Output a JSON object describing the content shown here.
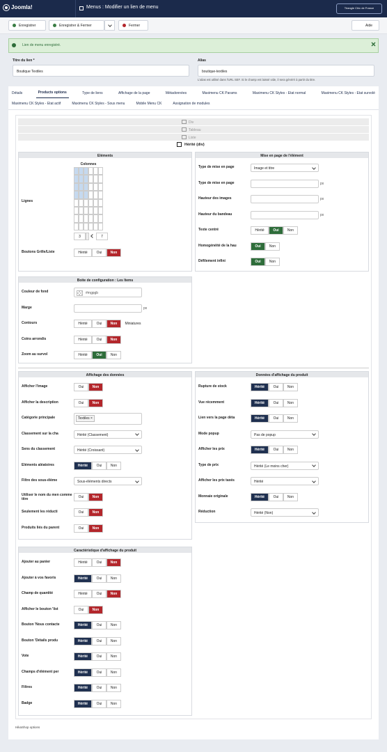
{
  "header": {
    "logo": "Joomla!",
    "title": "Menus : Modifier un lien de menu",
    "user": "Triangle Chic de France"
  },
  "toolbar": {
    "buttons": [
      "Enregistrer",
      "Enregistrer & Fermer",
      "Fermer"
    ],
    "help": "Aide"
  },
  "message": "Lien de menu enregistré.",
  "fields": [
    {
      "label": "Titre du lien *",
      "value": "Boutique Textiles"
    },
    {
      "label": "Alias",
      "value": "boutique-textiles",
      "help": "L'alias est utilisé dans l'URL SEF. Si le champ est laissé vide, il sera généré à partir du titre."
    }
  ],
  "tabs": {
    "rows": [
      [
        "Détails",
        "Products options",
        "Type de liens",
        "Affichage de la page",
        "Métadonnées",
        "Maximenu CK Params",
        "Maximenu CK Styles - Etat normal",
        "Maximenu CK Styles - Etat survolé"
      ],
      [
        "Maximenu CK Styles - Etat actif",
        "Maximenu CK Styles - Sous menu",
        "Mobile Menu CK",
        "Assignation de modules"
      ]
    ],
    "active": [
      0,
      1
    ]
  },
  "layouts": {
    "options": [
      "Div",
      "Tableau",
      "Liste"
    ],
    "current": "Hérité (div)"
  },
  "panels": [
    {
      "title": "Eléments",
      "rows": [
        {
          "label": "Lignes",
          "control": {
            "type": "grid",
            "columns_label": "Colonnes",
            "total_columns": 6,
            "total_rows": 8,
            "columns": 3,
            "rows": 4,
            "spin": [
              3,
              7
            ]
          }
        },
        {
          "label": "Boutons Grille/Liste",
          "control": {
            "type": "toggle",
            "options": [
              "Hérité",
              "Oui",
              "Non"
            ],
            "active": 2,
            "style": "red"
          }
        }
      ]
    },
    {
      "title": "Mise en page de l'élément",
      "rows": [
        {
          "label": "Type de mise en page",
          "control": {
            "type": "select",
            "value": "Image et titre"
          }
        },
        {
          "label": "Type de mise en page",
          "control": {
            "type": "input",
            "unit": "px"
          }
        },
        {
          "label": "Hauteur des images",
          "control": {
            "type": "input",
            "unit": "px"
          }
        },
        {
          "label": "Hauteur du bandeau",
          "control": {
            "type": "input",
            "unit": "px"
          }
        },
        {
          "label": "Texte centré",
          "control": {
            "type": "toggle",
            "options": [
              "Hérité",
              "Oui",
              "Non"
            ],
            "active": 1,
            "style": "green"
          }
        },
        {
          "label": "Homogénéité de la hau",
          "control": {
            "type": "toggle",
            "options": [
              "Oui",
              "Non"
            ],
            "active": 0,
            "style": "green"
          }
        },
        {
          "label": "Défilement infini",
          "control": {
            "type": "toggle",
            "options": [
              "Oui",
              "Non"
            ],
            "active": 0,
            "style": "green"
          }
        }
      ]
    },
    {
      "title": "Boite de configuration : Les Items",
      "rows": [
        {
          "label": "Couleur de fond",
          "control": {
            "type": "color",
            "value": "#mgpgb"
          }
        },
        {
          "label": "Marge",
          "control": {
            "type": "input",
            "unit": "px"
          }
        },
        {
          "label": "Contours",
          "control": {
            "type": "toggle",
            "options": [
              "Hérité",
              "Oui",
              "Non",
              "Miniatures"
            ],
            "active": 2,
            "style": "red"
          }
        },
        {
          "label": "Coins arrondis",
          "control": {
            "type": "toggle",
            "options": [
              "Hérité",
              "Oui",
              "Non"
            ],
            "active": 2,
            "style": "red"
          }
        },
        {
          "label": "Zoom au survol",
          "control": {
            "type": "toggle",
            "options": [
              "Hérité",
              "Oui",
              "Non"
            ],
            "active": 1,
            "style": "green"
          }
        }
      ]
    },
    {
      "title": "Affichage des données",
      "rows": [
        {
          "label": "Afficher l'image",
          "control": {
            "type": "toggle",
            "options": [
              "Oui",
              "Non"
            ],
            "active": 1,
            "style": "red"
          }
        },
        {
          "label": "Afficher la description",
          "control": {
            "type": "toggle",
            "options": [
              "Oui",
              "Non"
            ],
            "active": 1,
            "style": "red"
          }
        },
        {
          "label": "Catégorie principale",
          "control": {
            "type": "tags",
            "tags": [
              "Textiles ×"
            ]
          }
        },
        {
          "label": "Classement sur la cha",
          "control": {
            "type": "select",
            "value": "Hérité (Classement)"
          }
        },
        {
          "label": "Sens du classement",
          "control": {
            "type": "select",
            "value": "Hérité (Croissant)"
          }
        },
        {
          "label": "Eléments aléatoires",
          "control": {
            "type": "toggle",
            "options": [
              "Hérité",
              "Oui",
              "Non"
            ],
            "active": 0,
            "style": "dark"
          }
        },
        {
          "label": "Filtre des sous-éléme",
          "control": {
            "type": "select",
            "value": "Sous-éléments directs"
          }
        },
        {
          "label": "Utiliser le nom du men comme titre",
          "control": {
            "type": "toggle",
            "options": [
              "Oui",
              "Non"
            ],
            "active": 1,
            "style": "red"
          }
        },
        {
          "label": "Seulement les réducti",
          "control": {
            "type": "toggle",
            "options": [
              "Oui",
              "Non"
            ],
            "active": 1,
            "style": "red"
          }
        },
        {
          "label": "Produits liés du parent",
          "control": {
            "type": "toggle",
            "options": [
              "Oui",
              "Non"
            ],
            "active": 1,
            "style": "red"
          }
        }
      ]
    },
    {
      "title": "Données d'affichage du produit",
      "rows": [
        {
          "label": "Rupture de stock",
          "control": {
            "type": "toggle",
            "options": [
              "Hérité",
              "Oui",
              "Non"
            ],
            "active": 0,
            "style": "dark"
          }
        },
        {
          "label": "Vue récemment",
          "control": {
            "type": "toggle",
            "options": [
              "Hérité",
              "Oui",
              "Non"
            ],
            "active": 0,
            "style": "dark"
          }
        },
        {
          "label": "Lien vers la page déta",
          "control": {
            "type": "toggle",
            "options": [
              "Hérité",
              "Oui",
              "Non"
            ],
            "active": 0,
            "style": "dark"
          }
        },
        {
          "label": "Mode popup",
          "control": {
            "type": "select",
            "value": "Pas de popup"
          }
        },
        {
          "label": "Afficher les prix",
          "control": {
            "type": "toggle",
            "options": [
              "Hérité",
              "Oui",
              "Non"
            ],
            "active": 0,
            "style": "dark"
          }
        },
        {
          "label": "Type de prix",
          "control": {
            "type": "select",
            "value": "Hérité (Le moins cher)"
          }
        },
        {
          "label": "Afficher les prix taxés",
          "control": {
            "type": "select",
            "value": "Hérité"
          }
        },
        {
          "label": "Monnaie originale",
          "control": {
            "type": "toggle",
            "options": [
              "Hérité",
              "Oui",
              "Non"
            ],
            "active": 0,
            "style": "dark"
          }
        },
        {
          "label": "Réduction",
          "control": {
            "type": "select",
            "value": "Hérité (Non)"
          }
        }
      ]
    },
    {
      "title": "Caractéristique d'affichage du produit",
      "rows": [
        {
          "label": "Ajouter au panier",
          "control": {
            "type": "toggle",
            "options": [
              "Hérité",
              "Oui",
              "Non"
            ],
            "active": 2,
            "style": "red"
          }
        },
        {
          "label": "Ajouter à vos favoris",
          "control": {
            "type": "toggle",
            "options": [
              "Hérité",
              "Oui",
              "Non"
            ],
            "active": 0,
            "style": "dark"
          }
        },
        {
          "label": "Champ de quantité",
          "control": {
            "type": "toggle",
            "options": [
              "Hérité",
              "Oui",
              "Non"
            ],
            "active": 2,
            "style": "red"
          }
        },
        {
          "label": "Afficher le bouton 'list",
          "control": {
            "type": "toggle",
            "options": [
              "Oui",
              "Non"
            ],
            "active": 1,
            "style": "red"
          }
        },
        {
          "label": "Bouton 'Nous contacte",
          "control": {
            "type": "toggle",
            "options": [
              "Hérité",
              "Oui",
              "Non"
            ],
            "active": 0,
            "style": "dark"
          }
        },
        {
          "label": "Bouton 'Détails produ",
          "control": {
            "type": "toggle",
            "options": [
              "Hérité",
              "Oui",
              "Non"
            ],
            "active": 0,
            "style": "dark"
          }
        },
        {
          "label": "Vote",
          "control": {
            "type": "toggle",
            "options": [
              "Hérité",
              "Oui",
              "Non"
            ],
            "active": 0,
            "style": "dark"
          }
        },
        {
          "label": "Champs d'élément per",
          "control": {
            "type": "toggle",
            "options": [
              "Hérité",
              "Oui",
              "Non"
            ],
            "active": 0,
            "style": "dark"
          }
        },
        {
          "label": "Filtres",
          "control": {
            "type": "toggle",
            "options": [
              "Hérité",
              "Oui",
              "Non"
            ],
            "active": 0,
            "style": "dark"
          }
        },
        {
          "label": "Badge",
          "control": {
            "type": "toggle",
            "options": [
              "Hérité",
              "Oui",
              "Non"
            ],
            "active": 0,
            "style": "dark"
          }
        }
      ]
    }
  ],
  "footer": "HikaShop options"
}
